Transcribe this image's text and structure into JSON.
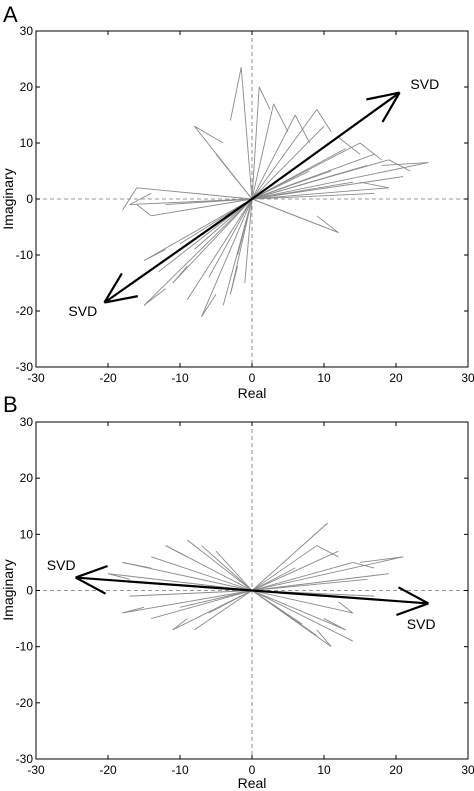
{
  "chart_data": [
    {
      "panel": "A",
      "type": "line",
      "xlabel": "Real",
      "ylabel": "Imaginary",
      "xlim": [
        -30,
        30
      ],
      "ylim": [
        -30,
        30
      ],
      "xticks": [
        "-30",
        "-20",
        "-10",
        "0",
        "10",
        "20",
        "30"
      ],
      "yticks": [
        "30",
        "20",
        "10",
        "0",
        "-10",
        "-20",
        "-30"
      ],
      "svd_label": "SVD",
      "svd_arrows": [
        {
          "tip": [
            20.5,
            19
          ],
          "label_at": [
            24,
            20.5
          ]
        },
        {
          "tip": [
            -20.5,
            -18.5
          ],
          "label_at": [
            -23.5,
            -20
          ]
        }
      ],
      "vectors": [
        {
          "from": [
            0,
            0
          ],
          "to": [
            -1.5,
            23.5
          ]
        },
        {
          "from": [
            -1.5,
            23.5
          ],
          "to": [
            -3,
            14
          ]
        },
        {
          "from": [
            0,
            0
          ],
          "to": [
            1,
            20
          ]
        },
        {
          "from": [
            1,
            20
          ],
          "to": [
            2.5,
            16
          ]
        },
        {
          "from": [
            0,
            0
          ],
          "to": [
            3,
            17
          ]
        },
        {
          "from": [
            3,
            17
          ],
          "to": [
            5,
            12
          ]
        },
        {
          "from": [
            0,
            0
          ],
          "to": [
            -8,
            13
          ]
        },
        {
          "from": [
            -8,
            13
          ],
          "to": [
            -4,
            10
          ]
        },
        {
          "from": [
            0,
            0
          ],
          "to": [
            -5,
            8
          ]
        },
        {
          "from": [
            0,
            0
          ],
          "to": [
            6,
            15
          ]
        },
        {
          "from": [
            6,
            15
          ],
          "to": [
            8,
            10
          ]
        },
        {
          "from": [
            0,
            0
          ],
          "to": [
            9,
            16
          ]
        },
        {
          "from": [
            9,
            16
          ],
          "to": [
            11,
            12
          ]
        },
        {
          "from": [
            0,
            0
          ],
          "to": [
            10,
            13
          ]
        },
        {
          "from": [
            0,
            0
          ],
          "to": [
            12,
            11
          ]
        },
        {
          "from": [
            12,
            11
          ],
          "to": [
            15,
            8
          ]
        },
        {
          "from": [
            0,
            0
          ],
          "to": [
            13,
            9
          ]
        },
        {
          "from": [
            0,
            0
          ],
          "to": [
            15,
            10
          ]
        },
        {
          "from": [
            15,
            10
          ],
          "to": [
            18,
            7
          ]
        },
        {
          "from": [
            0,
            0
          ],
          "to": [
            17,
            8
          ]
        },
        {
          "from": [
            0,
            0
          ],
          "to": [
            19,
            7
          ]
        },
        {
          "from": [
            19,
            7
          ],
          "to": [
            22,
            5
          ]
        },
        {
          "from": [
            0,
            0
          ],
          "to": [
            24.5,
            6.5
          ]
        },
        {
          "from": [
            24.5,
            6.5
          ],
          "to": [
            18,
            6
          ]
        },
        {
          "from": [
            0,
            0
          ],
          "to": [
            21,
            4
          ]
        },
        {
          "from": [
            0,
            0
          ],
          "to": [
            19,
            2
          ]
        },
        {
          "from": [
            19,
            2
          ],
          "to": [
            15,
            3
          ]
        },
        {
          "from": [
            0,
            0
          ],
          "to": [
            17,
            1
          ]
        },
        {
          "from": [
            0,
            0
          ],
          "to": [
            14,
            3
          ]
        },
        {
          "from": [
            0,
            0
          ],
          "to": [
            12,
            -6
          ]
        },
        {
          "from": [
            12,
            -6
          ],
          "to": [
            9,
            -3
          ]
        },
        {
          "from": [
            0,
            0
          ],
          "to": [
            10,
            -5
          ]
        },
        {
          "from": [
            0,
            0
          ],
          "to": [
            8,
            5
          ]
        },
        {
          "from": [
            0,
            0
          ],
          "to": [
            16,
            6
          ]
        },
        {
          "from": [
            0,
            0
          ],
          "to": [
            11,
            5
          ]
        },
        {
          "from": [
            0,
            0
          ],
          "to": [
            -17,
            -1
          ]
        },
        {
          "from": [
            -17,
            -1
          ],
          "to": [
            -14,
            1
          ]
        },
        {
          "from": [
            0,
            0
          ],
          "to": [
            -16,
            2
          ]
        },
        {
          "from": [
            -16,
            2
          ],
          "to": [
            -18,
            -2
          ]
        },
        {
          "from": [
            0,
            0
          ],
          "to": [
            -14,
            -3
          ]
        },
        {
          "from": [
            -14,
            -3
          ],
          "to": [
            -16,
            -1
          ]
        },
        {
          "from": [
            0,
            0
          ],
          "to": [
            -12,
            -1
          ]
        },
        {
          "from": [
            0,
            0
          ],
          "to": [
            -15,
            -11
          ]
        },
        {
          "from": [
            -15,
            -11
          ],
          "to": [
            -12,
            -9
          ]
        },
        {
          "from": [
            0,
            0
          ],
          "to": [
            -13,
            -13
          ]
        },
        {
          "from": [
            0,
            0
          ],
          "to": [
            -11,
            -15
          ]
        },
        {
          "from": [
            -11,
            -15
          ],
          "to": [
            -9,
            -12
          ]
        },
        {
          "from": [
            0,
            0
          ],
          "to": [
            -15,
            -19
          ]
        },
        {
          "from": [
            -15,
            -19
          ],
          "to": [
            -12,
            -16
          ]
        },
        {
          "from": [
            0,
            0
          ],
          "to": [
            -9,
            -18
          ]
        },
        {
          "from": [
            0,
            0
          ],
          "to": [
            -7,
            -21
          ]
        },
        {
          "from": [
            -7,
            -21
          ],
          "to": [
            -5,
            -17
          ]
        },
        {
          "from": [
            0,
            0
          ],
          "to": [
            -4,
            -19
          ]
        },
        {
          "from": [
            0,
            0
          ],
          "to": [
            -3,
            -17
          ]
        },
        {
          "from": [
            -3,
            -17
          ],
          "to": [
            -2,
            -12
          ]
        },
        {
          "from": [
            0,
            0
          ],
          "to": [
            -1,
            -15
          ]
        },
        {
          "from": [
            0,
            0
          ],
          "to": [
            -2,
            -10
          ]
        },
        {
          "from": [
            0,
            0
          ],
          "to": [
            -6,
            -14
          ]
        },
        {
          "from": [
            0,
            0
          ],
          "to": [
            -8,
            -9
          ]
        },
        {
          "from": [
            0,
            0
          ],
          "to": [
            -10,
            -8
          ]
        },
        {
          "from": [
            0,
            0
          ],
          "to": [
            20.5,
            19
          ]
        },
        {
          "from": [
            0,
            0
          ],
          "to": [
            -20.5,
            -18.5
          ]
        }
      ]
    },
    {
      "panel": "B",
      "type": "line",
      "xlabel": "Real",
      "ylabel": "Imaginary",
      "xlim": [
        -30,
        30
      ],
      "ylim": [
        -30,
        30
      ],
      "xticks": [
        "-30",
        "-20",
        "-10",
        "0",
        "10",
        "20",
        "30"
      ],
      "yticks": [
        "30",
        "20",
        "10",
        "0",
        "-10",
        "-20",
        "-30"
      ],
      "svd_label": "SVD",
      "svd_arrows": [
        {
          "tip": [
            24.5,
            -2.3
          ],
          "label_at": [
            23.5,
            -6
          ]
        },
        {
          "tip": [
            -24.5,
            2.3
          ],
          "label_at": [
            -26.5,
            4.5
          ]
        }
      ],
      "vectors": [
        {
          "from": [
            0,
            0
          ],
          "to": [
            10.5,
            12
          ]
        },
        {
          "from": [
            10.5,
            12
          ],
          "to": [
            7,
            8
          ]
        },
        {
          "from": [
            0,
            0
          ],
          "to": [
            9,
            8
          ]
        },
        {
          "from": [
            9,
            8
          ],
          "to": [
            12,
            6
          ]
        },
        {
          "from": [
            0,
            0
          ],
          "to": [
            12,
            7
          ]
        },
        {
          "from": [
            0,
            0
          ],
          "to": [
            14,
            5
          ]
        },
        {
          "from": [
            14,
            5
          ],
          "to": [
            17,
            4
          ]
        },
        {
          "from": [
            0,
            0
          ],
          "to": [
            21,
            6
          ]
        },
        {
          "from": [
            21,
            6
          ],
          "to": [
            15,
            5
          ]
        },
        {
          "from": [
            0,
            0
          ],
          "to": [
            19,
            3
          ]
        },
        {
          "from": [
            0,
            0
          ],
          "to": [
            16,
            2
          ]
        },
        {
          "from": [
            0,
            0
          ],
          "to": [
            6,
            4
          ]
        },
        {
          "from": [
            0,
            0
          ],
          "to": [
            14,
            -4
          ]
        },
        {
          "from": [
            14,
            -4
          ],
          "to": [
            12,
            -2
          ]
        },
        {
          "from": [
            0,
            0
          ],
          "to": [
            13,
            -7
          ]
        },
        {
          "from": [
            13,
            -7
          ],
          "to": [
            10,
            -5
          ]
        },
        {
          "from": [
            0,
            0
          ],
          "to": [
            14,
            -9
          ]
        },
        {
          "from": [
            0,
            0
          ],
          "to": [
            11,
            -10
          ]
        },
        {
          "from": [
            11,
            -10
          ],
          "to": [
            9,
            -7
          ]
        },
        {
          "from": [
            0,
            0
          ],
          "to": [
            9,
            -8
          ]
        },
        {
          "from": [
            0,
            0
          ],
          "to": [
            7,
            -6
          ]
        },
        {
          "from": [
            0,
            0
          ],
          "to": [
            17,
            -1
          ]
        },
        {
          "from": [
            0,
            0
          ],
          "to": [
            -12,
            8
          ]
        },
        {
          "from": [
            -12,
            8
          ],
          "to": [
            -9,
            6
          ]
        },
        {
          "from": [
            0,
            0
          ],
          "to": [
            -9,
            9
          ]
        },
        {
          "from": [
            -9,
            9
          ],
          "to": [
            -7,
            7
          ]
        },
        {
          "from": [
            0,
            0
          ],
          "to": [
            -7,
            8
          ]
        },
        {
          "from": [
            0,
            0
          ],
          "to": [
            -5,
            7
          ]
        },
        {
          "from": [
            0,
            0
          ],
          "to": [
            -14,
            6
          ]
        },
        {
          "from": [
            0,
            0
          ],
          "to": [
            -18,
            5
          ]
        },
        {
          "from": [
            -18,
            5
          ],
          "to": [
            -14,
            4
          ]
        },
        {
          "from": [
            0,
            0
          ],
          "to": [
            -20,
            3
          ]
        },
        {
          "from": [
            -20,
            3
          ],
          "to": [
            -17,
            2
          ]
        },
        {
          "from": [
            0,
            0
          ],
          "to": [
            -17,
            -1
          ]
        },
        {
          "from": [
            0,
            0
          ],
          "to": [
            -18,
            -4
          ]
        },
        {
          "from": [
            -18,
            -4
          ],
          "to": [
            -15,
            -3
          ]
        },
        {
          "from": [
            0,
            0
          ],
          "to": [
            -14,
            -5
          ]
        },
        {
          "from": [
            0,
            0
          ],
          "to": [
            -11,
            -7
          ]
        },
        {
          "from": [
            -11,
            -7
          ],
          "to": [
            -9,
            -5
          ]
        },
        {
          "from": [
            0,
            0
          ],
          "to": [
            -8,
            -7
          ]
        },
        {
          "from": [
            0,
            0
          ],
          "to": [
            -10,
            -3
          ]
        },
        {
          "from": [
            0,
            0
          ],
          "to": [
            -6,
            -4
          ]
        },
        {
          "from": [
            0,
            0
          ],
          "to": [
            24.5,
            -2.3
          ]
        },
        {
          "from": [
            0,
            0
          ],
          "to": [
            -24.5,
            2.3
          ]
        }
      ]
    }
  ]
}
